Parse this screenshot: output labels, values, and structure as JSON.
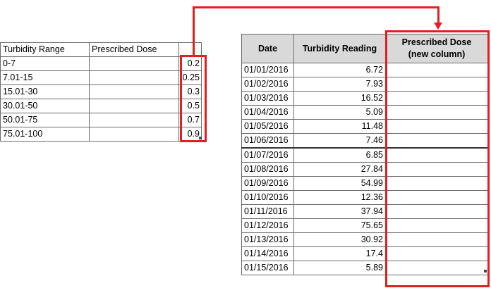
{
  "lookup_table": {
    "headers": [
      "Turbidity Range",
      "Prescribed Dose",
      ""
    ],
    "rows": [
      {
        "range": "0-7",
        "dose_blank": "",
        "value": "0.2"
      },
      {
        "range": "7.01-15",
        "dose_blank": "",
        "value": "0.25"
      },
      {
        "range": "15.01-30",
        "dose_blank": "",
        "value": "0.3"
      },
      {
        "range": "30.01-50",
        "dose_blank": "",
        "value": "0.5"
      },
      {
        "range": "50.01-75",
        "dose_blank": "",
        "value": "0.7"
      },
      {
        "range": "75.01-100",
        "dose_blank": "",
        "value": "0.9"
      }
    ]
  },
  "readings_table": {
    "headers": {
      "date": "Date",
      "turbidity": "Turbidity Reading",
      "dose_line1": "Prescribed Dose",
      "dose_line2": "(new column)"
    },
    "rows": [
      {
        "date": "01/01/2016",
        "reading": "6.72",
        "dose": ""
      },
      {
        "date": "01/02/2016",
        "reading": "7.93",
        "dose": ""
      },
      {
        "date": "01/03/2016",
        "reading": "16.52",
        "dose": ""
      },
      {
        "date": "01/04/2016",
        "reading": "5.09",
        "dose": ""
      },
      {
        "date": "01/05/2016",
        "reading": "11.48",
        "dose": ""
      },
      {
        "date": "01/06/2016",
        "reading": "7.46",
        "dose": ""
      },
      {
        "date": "01/07/2016",
        "reading": "6.85",
        "dose": ""
      },
      {
        "date": "01/08/2016",
        "reading": "27.84",
        "dose": ""
      },
      {
        "date": "01/09/2016",
        "reading": "54.99",
        "dose": ""
      },
      {
        "date": "01/10/2016",
        "reading": "12.36",
        "dose": ""
      },
      {
        "date": "01/11/2016",
        "reading": "37.94",
        "dose": ""
      },
      {
        "date": "01/12/2016",
        "reading": "75.65",
        "dose": ""
      },
      {
        "date": "01/13/2016",
        "reading": "30.92",
        "dose": ""
      },
      {
        "date": "01/14/2016",
        "reading": "17.4",
        "dose": ""
      },
      {
        "date": "01/15/2016",
        "reading": "5.89",
        "dose": ""
      }
    ]
  },
  "colors": {
    "highlight": "#e02020",
    "header_fill": "#d9d9d9",
    "gridline": "#6b6b6b"
  }
}
